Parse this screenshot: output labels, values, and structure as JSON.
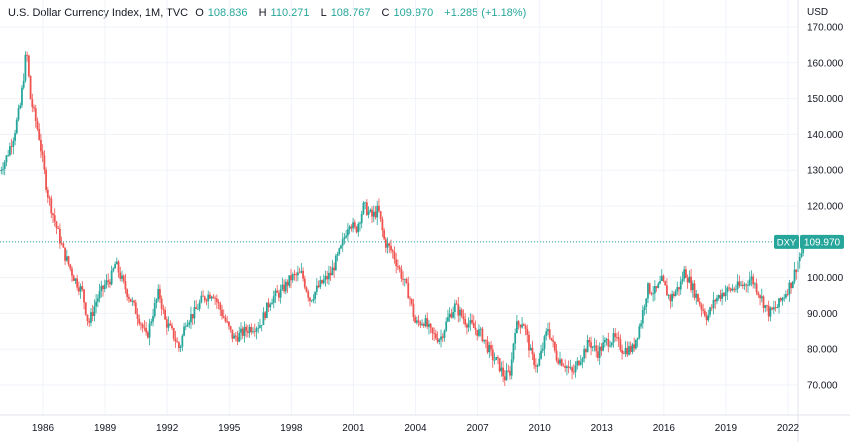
{
  "header": {
    "symbol_title": "U.S. Dollar Currency Index, 1M, TVC",
    "open_key": "O",
    "open": "108.836",
    "high_key": "H",
    "high": "110.271",
    "low_key": "L",
    "low": "108.767",
    "close_key": "C",
    "close": "109.970",
    "change": "+1.285 (+1.18%)"
  },
  "price_axis": {
    "currency": "USD",
    "ticks": [
      "170.000",
      "160.000",
      "150.000",
      "140.000",
      "130.000",
      "120.000",
      "110.000",
      "100.000",
      "90.000",
      "80.000",
      "70.000"
    ]
  },
  "time_axis": {
    "ticks": [
      "1986",
      "1989",
      "1992",
      "1995",
      "1998",
      "2001",
      "2004",
      "2007",
      "2010",
      "2013",
      "2016",
      "2019",
      "2022"
    ]
  },
  "price_label": {
    "symbol": "DXY",
    "value": "109.970"
  },
  "colors": {
    "up": "#26a69a",
    "down": "#ef5350",
    "grid": "#f0f3fa",
    "axis_text": "#131722",
    "last_line": "#26a69a"
  },
  "chart_data": {
    "type": "candlestick",
    "title": "U.S. Dollar Currency Index, 1M, TVC",
    "ylabel": "USD",
    "ylim": [
      67,
      173
    ],
    "x_range": [
      1983.8,
      2023.0
    ],
    "grid": true,
    "last_price": 109.97,
    "path_points": [
      [
        1983.9,
        130
      ],
      [
        1984.2,
        133
      ],
      [
        1984.6,
        140
      ],
      [
        1984.9,
        148
      ],
      [
        1985.1,
        158
      ],
      [
        1985.2,
        164
      ],
      [
        1985.4,
        150
      ],
      [
        1985.8,
        140
      ],
      [
        1986.2,
        124
      ],
      [
        1986.6,
        115
      ],
      [
        1987.0,
        107
      ],
      [
        1987.5,
        100
      ],
      [
        1987.9,
        96
      ],
      [
        1988.2,
        87
      ],
      [
        1988.6,
        94
      ],
      [
        1989.0,
        98
      ],
      [
        1989.3,
        100
      ],
      [
        1989.5,
        104
      ],
      [
        1989.9,
        98
      ],
      [
        1990.3,
        93
      ],
      [
        1990.7,
        88
      ],
      [
        1991.0,
        83
      ],
      [
        1991.3,
        90
      ],
      [
        1991.6,
        96
      ],
      [
        1991.9,
        88
      ],
      [
        1992.3,
        84
      ],
      [
        1992.6,
        80
      ],
      [
        1992.9,
        88
      ],
      [
        1993.3,
        90
      ],
      [
        1993.7,
        94
      ],
      [
        1994.2,
        96
      ],
      [
        1994.8,
        88
      ],
      [
        1995.2,
        83
      ],
      [
        1995.5,
        84
      ],
      [
        1996.0,
        86
      ],
      [
        1996.5,
        87
      ],
      [
        1997.0,
        94
      ],
      [
        1997.5,
        96
      ],
      [
        1998.0,
        100
      ],
      [
        1998.5,
        101
      ],
      [
        1998.9,
        94
      ],
      [
        1999.4,
        98
      ],
      [
        1999.9,
        101
      ],
      [
        2000.4,
        108
      ],
      [
        2000.8,
        116
      ],
      [
        2001.1,
        113
      ],
      [
        2001.5,
        120
      ],
      [
        2001.9,
        117
      ],
      [
        2002.2,
        119
      ],
      [
        2002.5,
        110
      ],
      [
        2002.9,
        107
      ],
      [
        2003.3,
        101
      ],
      [
        2003.7,
        95
      ],
      [
        2004.0,
        87
      ],
      [
        2004.4,
        88
      ],
      [
        2004.8,
        84
      ],
      [
        2005.2,
        83
      ],
      [
        2005.6,
        89
      ],
      [
        2005.9,
        92
      ],
      [
        2006.4,
        88
      ],
      [
        2006.8,
        86
      ],
      [
        2007.2,
        84
      ],
      [
        2007.7,
        78
      ],
      [
        2008.0,
        76
      ],
      [
        2008.3,
        72
      ],
      [
        2008.6,
        74
      ],
      [
        2008.8,
        86
      ],
      [
        2009.2,
        88
      ],
      [
        2009.6,
        78
      ],
      [
        2009.9,
        75
      ],
      [
        2010.4,
        86
      ],
      [
        2010.8,
        78
      ],
      [
        2011.2,
        76
      ],
      [
        2011.6,
        73
      ],
      [
        2011.9,
        77
      ],
      [
        2012.4,
        82
      ],
      [
        2012.8,
        79
      ],
      [
        2013.2,
        82
      ],
      [
        2013.6,
        83
      ],
      [
        2014.0,
        80
      ],
      [
        2014.5,
        80
      ],
      [
        2014.9,
        88
      ],
      [
        2015.2,
        97
      ],
      [
        2015.6,
        96
      ],
      [
        2015.9,
        99
      ],
      [
        2016.3,
        94
      ],
      [
        2016.8,
        98
      ],
      [
        2017.0,
        102
      ],
      [
        2017.4,
        97
      ],
      [
        2017.8,
        92
      ],
      [
        2018.1,
        89
      ],
      [
        2018.5,
        94
      ],
      [
        2018.9,
        96
      ],
      [
        2019.4,
        97
      ],
      [
        2019.9,
        98
      ],
      [
        2020.2,
        100
      ],
      [
        2020.5,
        97
      ],
      [
        2020.9,
        92
      ],
      [
        2021.1,
        90
      ],
      [
        2021.5,
        92
      ],
      [
        2021.9,
        96
      ],
      [
        2022.2,
        99
      ],
      [
        2022.5,
        105
      ],
      [
        2022.75,
        108
      ],
      [
        2022.85,
        109.97
      ]
    ]
  }
}
